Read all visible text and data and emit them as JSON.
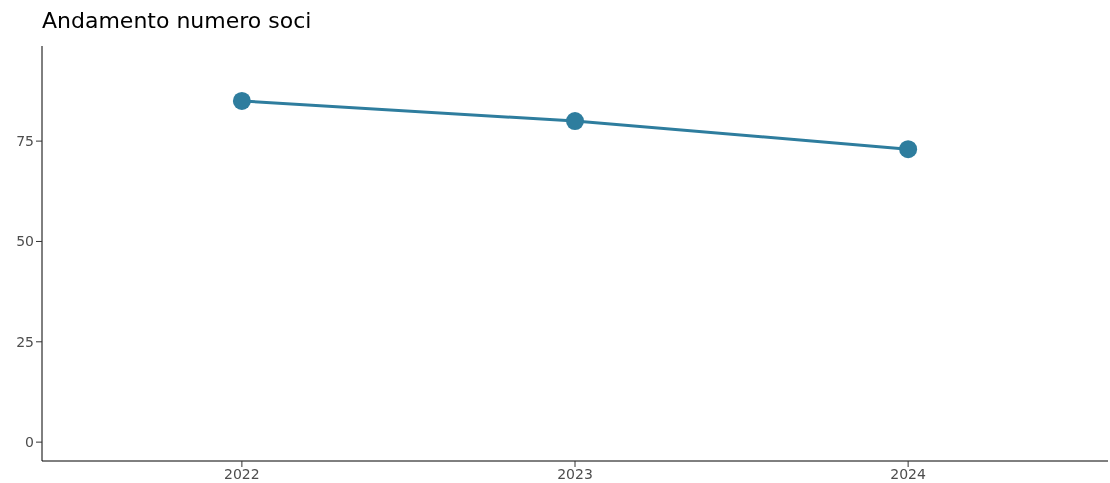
{
  "chart_data": {
    "type": "line",
    "title": "Andamento numero soci",
    "categories": [
      "2022",
      "2023",
      "2024"
    ],
    "series": [
      {
        "color": "#2e7d9e",
        "values": [
          85,
          80,
          73
        ]
      }
    ],
    "ylim": [
      -4.7,
      98.7
    ],
    "yticks": [
      0,
      25,
      50,
      75
    ],
    "grid": false,
    "marker": "circle",
    "line_style": "solid"
  }
}
